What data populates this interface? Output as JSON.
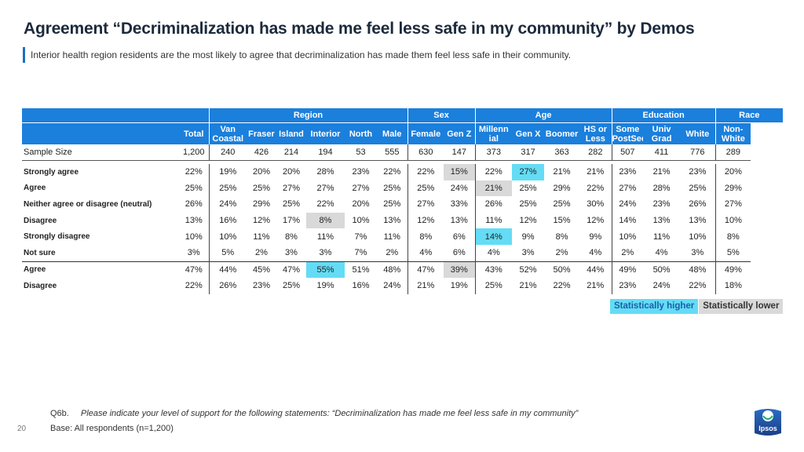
{
  "title": "Agreement “Decriminalization has made me feel less safe in my community” by Demos",
  "subtitle": "Interior health region residents are the most likely to agree that decriminalization has made them feel less safe in their community.",
  "groups": [
    {
      "label": "",
      "span": 1
    },
    {
      "label": "Region",
      "span": 6
    },
    {
      "label": "Sex",
      "span": 2
    },
    {
      "label": "Age",
      "span": 4
    },
    {
      "label": "Education",
      "span": 3
    },
    {
      "label": "Race",
      "span": 2
    }
  ],
  "columns": [
    "Total",
    "Van Coastal",
    "Fraser",
    "Island",
    "Interior",
    "North",
    "Male",
    "Female",
    "Gen Z",
    "Millennial",
    "Gen X",
    "Boomer",
    "HS or Less",
    "Some PostSec",
    "Univ Grad",
    "White",
    "Non-White"
  ],
  "column_display": [
    [
      "Total"
    ],
    [
      "Van",
      "Coastal"
    ],
    [
      "Fraser"
    ],
    [
      "Island"
    ],
    [
      "Interior"
    ],
    [
      "North"
    ],
    [
      "Male"
    ],
    [
      "Female"
    ],
    [
      "Gen Z"
    ],
    [
      "Millenn",
      "ial"
    ],
    [
      "Gen X"
    ],
    [
      "Boomer"
    ],
    [
      "HS or",
      "Less"
    ],
    [
      "Some",
      "PostSec"
    ],
    [
      "Univ",
      "Grad"
    ],
    [
      "White"
    ],
    [
      "Non-",
      "White"
    ]
  ],
  "sample": {
    "label": "Sample Size",
    "values": [
      "1,200",
      "240",
      "426",
      "214",
      "194",
      "53",
      "555",
      "630",
      "147",
      "373",
      "317",
      "363",
      "282",
      "507",
      "411",
      "776",
      "289"
    ]
  },
  "rows": [
    {
      "label": "Strongly agree",
      "values": [
        "22%",
        "19%",
        "20%",
        "20%",
        "28%",
        "23%",
        "22%",
        "22%",
        "15%",
        "22%",
        "27%",
        "21%",
        "21%",
        "23%",
        "21%",
        "23%",
        "20%"
      ],
      "flags": [
        "",
        "",
        "",
        "",
        "",
        "",
        "",
        "",
        "lo",
        "",
        "hi",
        "",
        "",
        "",
        "",
        "",
        ""
      ]
    },
    {
      "label": "Agree",
      "values": [
        "25%",
        "25%",
        "25%",
        "27%",
        "27%",
        "27%",
        "25%",
        "25%",
        "24%",
        "21%",
        "25%",
        "29%",
        "22%",
        "27%",
        "28%",
        "25%",
        "29%"
      ],
      "flags": [
        "",
        "",
        "",
        "",
        "",
        "",
        "",
        "",
        "",
        "lo",
        "",
        "",
        "",
        "",
        "",
        "",
        ""
      ]
    },
    {
      "label": "Neither agree or disagree (neutral)",
      "values": [
        "26%",
        "24%",
        "29%",
        "25%",
        "22%",
        "20%",
        "25%",
        "27%",
        "33%",
        "26%",
        "25%",
        "25%",
        "30%",
        "24%",
        "23%",
        "26%",
        "27%"
      ],
      "flags": [
        "",
        "",
        "",
        "",
        "",
        "",
        "",
        "",
        "",
        "",
        "",
        "",
        "",
        "",
        "",
        "",
        ""
      ]
    },
    {
      "label": "Disagree",
      "values": [
        "13%",
        "16%",
        "12%",
        "17%",
        "8%",
        "10%",
        "13%",
        "12%",
        "13%",
        "11%",
        "12%",
        "15%",
        "12%",
        "14%",
        "13%",
        "13%",
        "10%"
      ],
      "flags": [
        "",
        "",
        "",
        "",
        "lo",
        "",
        "",
        "",
        "",
        "",
        "",
        "",
        "",
        "",
        "",
        "",
        ""
      ]
    },
    {
      "label": "Strongly disagree",
      "values": [
        "10%",
        "10%",
        "11%",
        "8%",
        "11%",
        "7%",
        "11%",
        "8%",
        "6%",
        "14%",
        "9%",
        "8%",
        "9%",
        "10%",
        "11%",
        "10%",
        "8%"
      ],
      "flags": [
        "",
        "",
        "",
        "",
        "",
        "",
        "",
        "",
        "",
        "hi",
        "",
        "",
        "",
        "",
        "",
        "",
        ""
      ]
    },
    {
      "label": "Not sure",
      "values": [
        "3%",
        "5%",
        "2%",
        "3%",
        "3%",
        "7%",
        "2%",
        "4%",
        "6%",
        "4%",
        "3%",
        "2%",
        "4%",
        "2%",
        "4%",
        "3%",
        "5%"
      ],
      "flags": [
        "",
        "",
        "",
        "",
        "",
        "",
        "",
        "",
        "",
        "",
        "",
        "",
        "",
        "",
        "",
        "",
        ""
      ]
    },
    {
      "label": "Agree",
      "values": [
        "47%",
        "44%",
        "45%",
        "47%",
        "55%",
        "51%",
        "48%",
        "47%",
        "39%",
        "43%",
        "52%",
        "50%",
        "44%",
        "49%",
        "50%",
        "48%",
        "49%"
      ],
      "flags": [
        "",
        "",
        "",
        "",
        "hi",
        "",
        "",
        "",
        "lo",
        "",
        "",
        "",
        "",
        "",
        "",
        "",
        ""
      ]
    },
    {
      "label": "Disagree",
      "values": [
        "22%",
        "26%",
        "23%",
        "25%",
        "19%",
        "16%",
        "24%",
        "21%",
        "19%",
        "25%",
        "21%",
        "22%",
        "21%",
        "23%",
        "24%",
        "22%",
        "18%"
      ],
      "flags": [
        "",
        "",
        "",
        "",
        "",
        "",
        "",
        "",
        "",
        "",
        "",
        "",
        "",
        "",
        "",
        "",
        ""
      ]
    }
  ],
  "legend": {
    "higher": "Statistically higher",
    "lower": "Statistically lower"
  },
  "footer": {
    "qid": "Q6b.",
    "question": "Please indicate your level of support for the following statements: “Decriminalization has made me feel less safe in my community”",
    "base": "Base: All respondents (n=1,200)",
    "page": "20"
  },
  "logo_text": "Ipsos",
  "colors": {
    "header_blue": "#1b7fdc",
    "higher": "#64dcf5",
    "lower": "#d9d9d9",
    "accent": "#1a6fc4"
  }
}
